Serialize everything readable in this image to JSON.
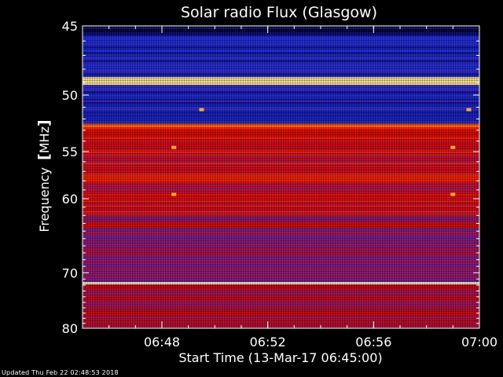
{
  "chart_data": {
    "type": "heatmap",
    "title": "Solar radio Flux (Glasgow)",
    "xlabel": "Start Time (13-Mar-17 06:45:00)",
    "ylabel_text": "Frequency",
    "ylabel_unit": "MHz",
    "x_ticks": [
      {
        "minutes": 3,
        "label": "06:48"
      },
      {
        "minutes": 7,
        "label": "06:52"
      },
      {
        "minutes": 11,
        "label": "06:56"
      },
      {
        "minutes": 15,
        "label": "07:00"
      }
    ],
    "xlim_minutes": [
      0,
      15
    ],
    "ylim_mhz": [
      45,
      80
    ],
    "y_ticks": [
      {
        "value": 45,
        "label": "45"
      },
      {
        "value": 50,
        "label": "50"
      },
      {
        "value": 55,
        "label": "55"
      },
      {
        "value": 60,
        "label": "60"
      },
      {
        "value": 70,
        "label": "70"
      },
      {
        "value": 80,
        "label": "80"
      }
    ],
    "y_minor_ticks_mhz": [
      46,
      47,
      48,
      49,
      51,
      52,
      53,
      54,
      56,
      57,
      58,
      59,
      61,
      62,
      63,
      64,
      65,
      66,
      67,
      68,
      69,
      71,
      72,
      73,
      74,
      75,
      76,
      77,
      78,
      79
    ],
    "colormap": [
      "#00001a",
      "#0a0a8c",
      "#1e2ee0",
      "#6a1e9a",
      "#a01460",
      "#d00000",
      "#ff3000",
      "#ff8c20",
      "#ffd060",
      "#ffffc8"
    ],
    "bands": [
      {
        "from": 45.0,
        "to": 45.6,
        "level": 0.05
      },
      {
        "from": 45.6,
        "to": 48.6,
        "level": 0.18
      },
      {
        "from": 48.6,
        "to": 49.2,
        "level": 0.98
      },
      {
        "from": 49.2,
        "to": 52.4,
        "level": 0.2
      },
      {
        "from": 52.4,
        "to": 52.8,
        "level": 0.7
      },
      {
        "from": 52.8,
        "to": 62.0,
        "level": 0.55
      },
      {
        "from": 62.0,
        "to": 63.0,
        "level": 0.42
      },
      {
        "from": 63.0,
        "to": 63.6,
        "level": 0.62
      },
      {
        "from": 63.6,
        "to": 71.5,
        "level": 0.4
      },
      {
        "from": 71.5,
        "to": 71.9,
        "level": 0.95
      },
      {
        "from": 71.9,
        "to": 76.5,
        "level": 0.48
      },
      {
        "from": 76.5,
        "to": 80.0,
        "level": 0.52
      }
    ],
    "hot_spots": [
      {
        "minutes": 3.45,
        "mhz": 54.6
      },
      {
        "minutes": 3.45,
        "mhz": 59.5
      },
      {
        "minutes": 14.0,
        "mhz": 54.6
      },
      {
        "minutes": 14.0,
        "mhz": 59.5
      },
      {
        "minutes": 4.5,
        "mhz": 51.2
      },
      {
        "minutes": 14.6,
        "mhz": 51.2
      }
    ]
  },
  "footer": {
    "updated": "Updated Thu Feb 22 02:48:53 2018"
  }
}
